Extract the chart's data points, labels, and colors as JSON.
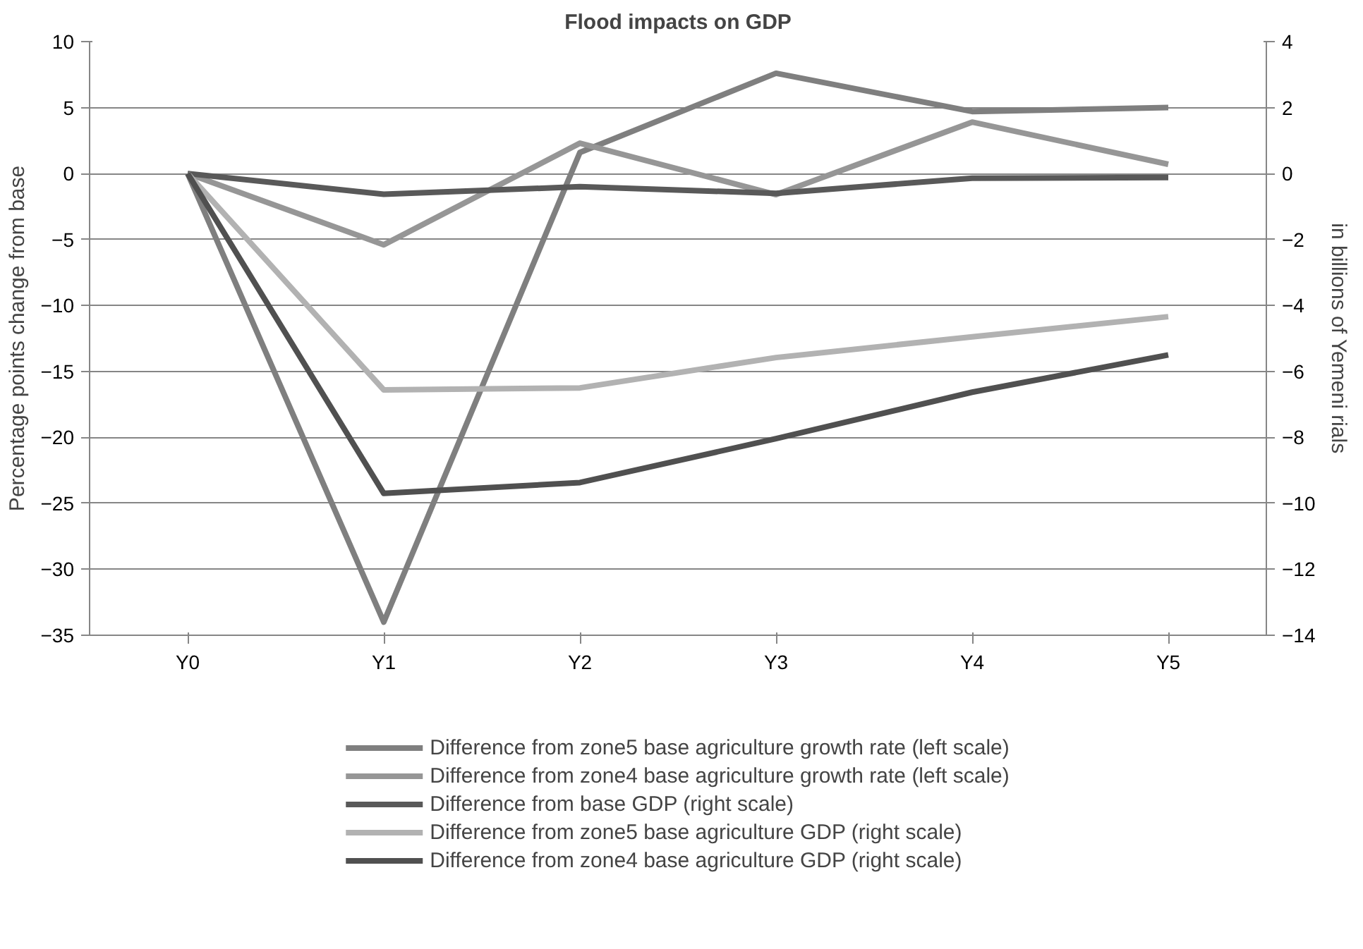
{
  "chart_data": {
    "type": "line",
    "title": "Flood impacts on GDP",
    "ylabel": "Percentage points change from base",
    "y2label": "in billions of Yemeni rials",
    "categories": [
      "Y0",
      "Y1",
      "Y2",
      "Y3",
      "Y4",
      "Y5"
    ],
    "series": [
      {
        "name": "Difference from zone5 base agriculture growth rate (left scale)",
        "color": "#7f7f7f",
        "values": [
          0,
          -34.0,
          1.6,
          7.6,
          4.7,
          5.0
        ]
      },
      {
        "name": "Difference from zone4 base agriculture growth rate (left scale)",
        "color": "#969696",
        "values": [
          0,
          -5.4,
          2.3,
          -1.6,
          3.9,
          0.7
        ]
      },
      {
        "name": "Difference from base GDP (right scale)",
        "color": "#595959",
        "axis": "y2",
        "values": [
          0,
          -0.63,
          -0.4,
          -0.6,
          -0.14,
          -0.12
        ]
      },
      {
        "name": "Difference from zone5 base agriculture GDP (right scale)",
        "color": "#b2b2b2",
        "axis": "y2",
        "values": [
          0,
          -6.56,
          -6.5,
          -5.58,
          -4.95,
          -4.34
        ]
      },
      {
        "name": "Difference from zone4 base agriculture GDP (right scale)",
        "color": "#505050",
        "axis": "y2",
        "values": [
          0,
          -9.7,
          -9.37,
          -8.04,
          -6.63,
          -5.5
        ]
      }
    ],
    "ylim": [
      -35,
      10
    ],
    "yticks": [
      -35,
      -30,
      -25,
      -20,
      -15,
      -10,
      -5,
      0,
      5,
      10
    ],
    "y2lim": [
      -14,
      4
    ],
    "y2ticks": [
      -14,
      -12,
      -10,
      -8,
      -6,
      -4,
      -2,
      0,
      2,
      4
    ],
    "grid": "y",
    "legend": "bottom",
    "marker": "none",
    "line_style": "solid"
  }
}
